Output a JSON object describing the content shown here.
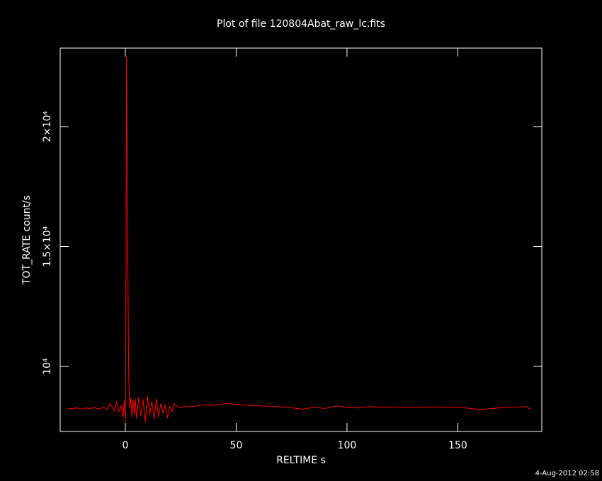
{
  "chart_data": {
    "type": "line",
    "title": "Plot of file 120804Abat_raw_lc.fits",
    "x_label": "RELTIME  s",
    "y_label": "TOT_RATE  count/s",
    "footer": "4-Aug-2012 02:58",
    "xlim": [
      -29.4,
      187.9
    ],
    "ylim": [
      7290,
      23270
    ],
    "xticks": [
      0,
      50,
      100,
      150
    ],
    "yticks": [
      {
        "value": 10000,
        "label": "10⁴"
      },
      {
        "value": 15000,
        "label": "1.5×10⁴"
      },
      {
        "value": 20000,
        "label": "2×10⁴"
      }
    ],
    "x": [
      -26,
      -24,
      -22,
      -20,
      -18,
      -16,
      -14,
      -12,
      -10,
      -8,
      -7,
      -6,
      -5,
      -4,
      -3,
      -2,
      -1,
      -0.5,
      0,
      0.25,
      0.5,
      0.75,
      1,
      1.5,
      2,
      2.5,
      3,
      3.5,
      4,
      4.5,
      5,
      6,
      7,
      8,
      9,
      10,
      11,
      12,
      13,
      14,
      15,
      16,
      17,
      18,
      19,
      20,
      21,
      22,
      24,
      26,
      28,
      30,
      35,
      40,
      45,
      50,
      55,
      60,
      65,
      70,
      75,
      80,
      85,
      90,
      95,
      100,
      105,
      110,
      115,
      120,
      125,
      130,
      135,
      140,
      145,
      150,
      155,
      160,
      165,
      170,
      175,
      180,
      183
    ],
    "series": [
      {
        "color": "#ff0000",
        "values": [
          8260,
          8230,
          8280,
          8220,
          8270,
          8250,
          8280,
          8230,
          8300,
          8200,
          8450,
          8300,
          8150,
          8500,
          8100,
          8400,
          7900,
          8600,
          7700,
          12000,
          22900,
          19400,
          16000,
          9500,
          8300,
          8700,
          7900,
          8600,
          8000,
          8650,
          7850,
          8700,
          7950,
          8600,
          7700,
          8750,
          8000,
          8550,
          7800,
          8650,
          7900,
          8450,
          8050,
          8400,
          7850,
          8350,
          8100,
          8450,
          8280,
          8300,
          8350,
          8330,
          8400,
          8380,
          8450,
          8430,
          8380,
          8360,
          8340,
          8320,
          8280,
          8220,
          8300,
          8250,
          8350,
          8300,
          8270,
          8330,
          8300,
          8310,
          8300,
          8290,
          8300,
          8310,
          8290,
          8300,
          8260,
          8200,
          8250,
          8280,
          8300,
          8330,
          8230
        ]
      }
    ]
  }
}
